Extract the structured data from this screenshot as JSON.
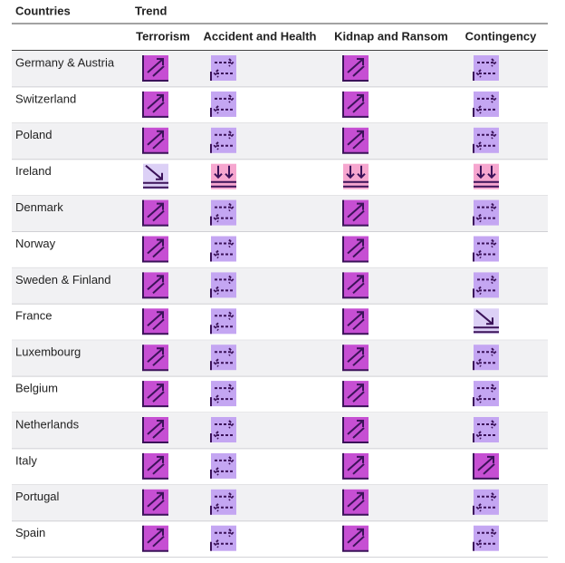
{
  "header": {
    "countries": "Countries",
    "trend": "Trend"
  },
  "columns": [
    "Terrorism",
    "Accident and Health",
    "Kidnap and Ransom",
    "Contingency"
  ],
  "rows": [
    {
      "country": "Germany & Austria",
      "cells": [
        "#c64fd3",
        "#c4a6f2",
        "#c64fd3",
        "#c4a6f2"
      ]
    },
    {
      "country": "Switzerland",
      "cells": [
        "#c64fd3",
        "#c4a6f2",
        "#c64fd3",
        "#c4a6f2"
      ]
    },
    {
      "country": "Poland",
      "cells": [
        "#c64fd3",
        "#c4a6f2",
        "#c64fd3",
        "#c4a6f2"
      ]
    },
    {
      "country": "Ireland",
      "cells": [
        "#dcd0f6",
        "#f6a6cf",
        "#f6a6cf",
        "#f6a6cf"
      ]
    },
    {
      "country": "Denmark",
      "cells": [
        "#c64fd3",
        "#c4a6f2",
        "#c64fd3",
        "#c4a6f2"
      ]
    },
    {
      "country": "Norway",
      "cells": [
        "#c64fd3",
        "#c4a6f2",
        "#c64fd3",
        "#c4a6f2"
      ]
    },
    {
      "country": "Sweden & Finland",
      "cells": [
        "#c64fd3",
        "#c4a6f2",
        "#c64fd3",
        "#c4a6f2"
      ]
    },
    {
      "country": "France",
      "cells": [
        "#c64fd3",
        "#c4a6f2",
        "#c64fd3",
        "#dcd0f6"
      ]
    },
    {
      "country": "Luxembourg",
      "cells": [
        "#c64fd3",
        "#c4a6f2",
        "#c64fd3",
        "#c4a6f2"
      ]
    },
    {
      "country": "Belgium",
      "cells": [
        "#c64fd3",
        "#c4a6f2",
        "#c64fd3",
        "#c4a6f2"
      ]
    },
    {
      "country": "Netherlands",
      "cells": [
        "#c64fd3",
        "#c4a6f2",
        "#c64fd3",
        "#c4a6f2"
      ]
    },
    {
      "country": "Italy",
      "cells": [
        "#c64fd3",
        "#c4a6f2",
        "#c64fd3",
        "#c64fd3"
      ]
    },
    {
      "country": "Portugal",
      "cells": [
        "#c64fd3",
        "#c4a6f2",
        "#c64fd3",
        "#c4a6f2"
      ]
    },
    {
      "country": "Spain",
      "cells": [
        "#c64fd3",
        "#c4a6f2",
        "#c64fd3",
        "#c4a6f2"
      ]
    }
  ]
}
